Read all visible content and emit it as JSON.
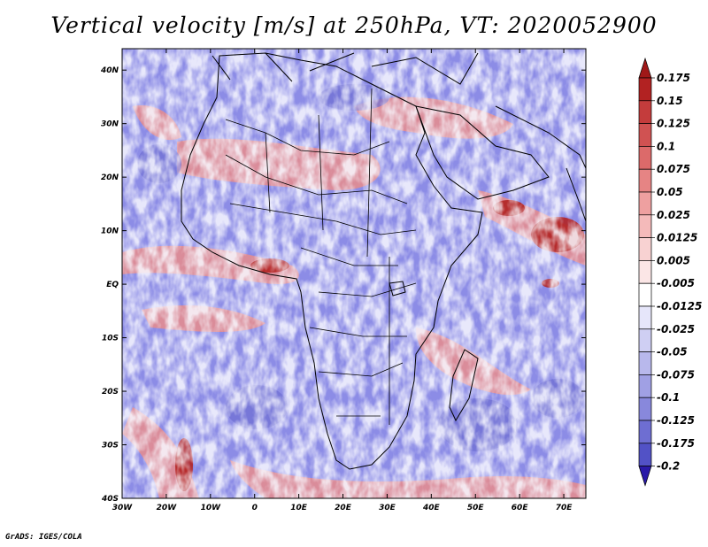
{
  "title": "Vertical velocity [m/s] at 250hPa, VT: 2020052900",
  "footer": "GrADS: IGES/COLA",
  "map": {
    "lon_range": [
      -30,
      75
    ],
    "lat_range": [
      -40,
      44
    ],
    "lat_ticks": [
      {
        "value": 40,
        "label": "40N"
      },
      {
        "value": 30,
        "label": "30N"
      },
      {
        "value": 20,
        "label": "20N"
      },
      {
        "value": 10,
        "label": "10N"
      },
      {
        "value": 0,
        "label": "EQ"
      },
      {
        "value": -10,
        "label": "10S"
      },
      {
        "value": -20,
        "label": "20S"
      },
      {
        "value": -30,
        "label": "30S"
      },
      {
        "value": -40,
        "label": "40S"
      }
    ],
    "lon_ticks": [
      {
        "value": -30,
        "label": "30W"
      },
      {
        "value": -20,
        "label": "20W"
      },
      {
        "value": -10,
        "label": "10W"
      },
      {
        "value": 0,
        "label": "0"
      },
      {
        "value": 10,
        "label": "10E"
      },
      {
        "value": 20,
        "label": "20E"
      },
      {
        "value": 30,
        "label": "30E"
      },
      {
        "value": 40,
        "label": "40E"
      },
      {
        "value": 50,
        "label": "50E"
      },
      {
        "value": 60,
        "label": "60E"
      },
      {
        "value": 70,
        "label": "70E"
      }
    ]
  },
  "colorbar": {
    "levels": [
      {
        "label": "0.175",
        "color": "#b22222"
      },
      {
        "label": "0.15",
        "color": "#c43c3c"
      },
      {
        "label": "0.125",
        "color": "#d05252"
      },
      {
        "label": "0.1",
        "color": "#dc6a6a"
      },
      {
        "label": "0.075",
        "color": "#e68484"
      },
      {
        "label": "0.05",
        "color": "#eea0a0"
      },
      {
        "label": "0.025",
        "color": "#f4baba"
      },
      {
        "label": "0.0125",
        "color": "#f8d2d2"
      },
      {
        "label": "0.005",
        "color": "#fbe6e6"
      },
      {
        "label": "-0.005",
        "color": "#ffffff"
      },
      {
        "label": "-0.0125",
        "color": "#e6e6fa"
      },
      {
        "label": "-0.025",
        "color": "#cfcff3"
      },
      {
        "label": "-0.05",
        "color": "#b8b8ec"
      },
      {
        "label": "-0.075",
        "color": "#a0a0e4"
      },
      {
        "label": "-0.1",
        "color": "#8888dc"
      },
      {
        "label": "-0.125",
        "color": "#6e6ed2"
      },
      {
        "label": "-0.175",
        "color": "#5252c6"
      },
      {
        "label": "-0.2",
        "color": "#3636b8"
      }
    ],
    "top_arrow_color": "#a01818",
    "bottom_arrow_color": "#2a1aa8"
  },
  "colors": {
    "field_blue": "#8c8ce6",
    "field_red": "#e88c8c",
    "field_white": "#f4f4fc",
    "coastline": "#000000"
  }
}
